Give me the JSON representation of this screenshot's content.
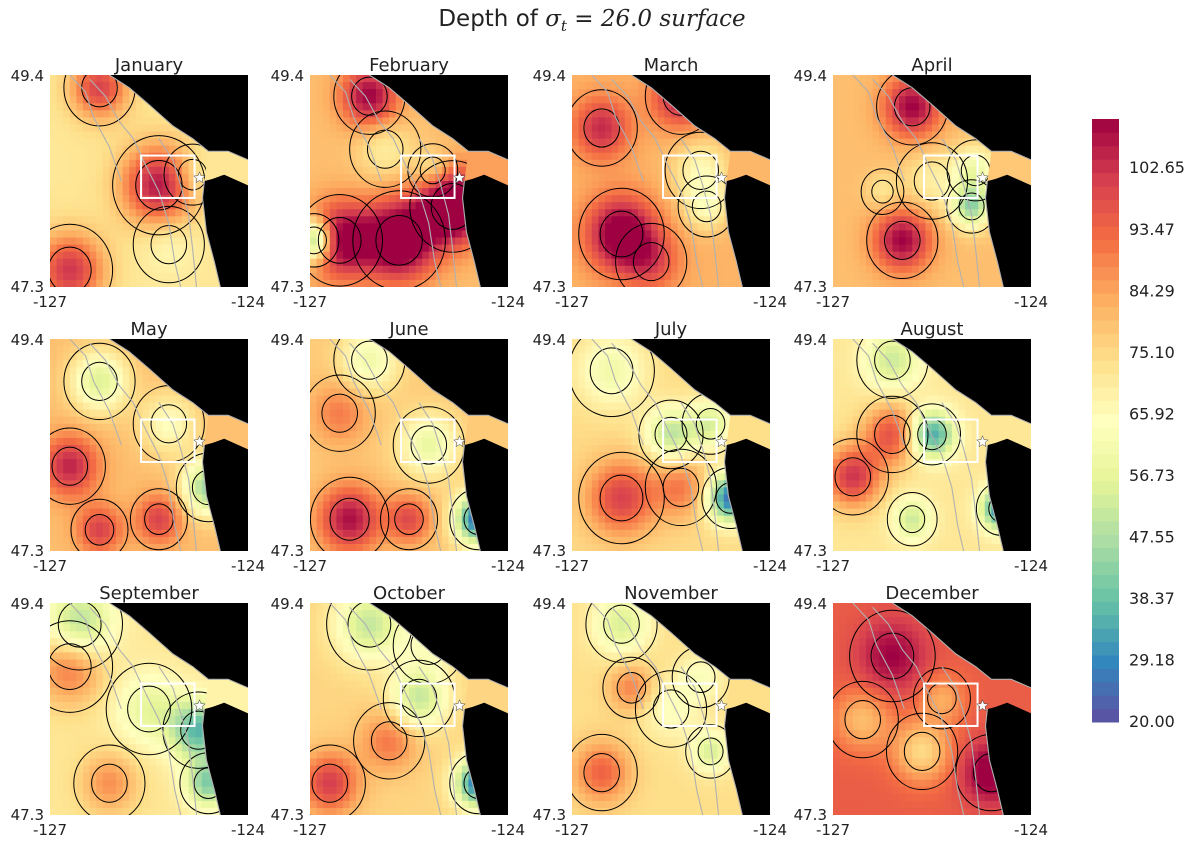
{
  "figure": {
    "title_prefix": "Depth of ",
    "title_symbol": "σ",
    "title_subscript": "t",
    "title_suffix": " = 26.0 surface"
  },
  "axes": {
    "lon_min": "-127",
    "lon_max": "-124",
    "lat_min": "47.3",
    "lat_max": "49.4"
  },
  "colorbar": {
    "ticks": [
      "20.00",
      "29.18",
      "38.37",
      "47.55",
      "56.73",
      "65.92",
      "75.10",
      "84.29",
      "93.47",
      "102.65"
    ],
    "min": 20,
    "max": 110,
    "colormap": "Spectral_r",
    "stops": [
      "#5e4fa2",
      "#3288bd",
      "#66c2a5",
      "#abdda4",
      "#e6f598",
      "#ffffbf",
      "#fee08b",
      "#fdae61",
      "#f46d43",
      "#d53e4f",
      "#9e0142"
    ]
  },
  "colors": {
    "land": "#000000",
    "coast_outline": "#b0b0b0",
    "contour": "#000000",
    "box": "#ffffff",
    "station_star": "#ffffff"
  },
  "chart_data": {
    "type": "heatmap",
    "variable": "Depth of σt = 26.0 surface",
    "x_range": [
      -127,
      -124
    ],
    "y_range": [
      47.3,
      49.4
    ],
    "value_range": [
      20,
      110
    ],
    "panels": [
      {
        "month": "January",
        "base": 72,
        "blobs": [
          [
            0.55,
            0.52,
            35,
            0.13
          ],
          [
            0.1,
            0.92,
            30,
            0.12
          ],
          [
            0.25,
            0.06,
            28,
            0.1
          ],
          [
            0.72,
            0.47,
            -8,
            0.08
          ],
          [
            0.6,
            0.8,
            -6,
            0.1
          ]
        ]
      },
      {
        "month": "February",
        "base": 80,
        "blobs": [
          [
            0.15,
            0.78,
            35,
            0.12
          ],
          [
            0.45,
            0.78,
            40,
            0.13
          ],
          [
            0.72,
            0.62,
            45,
            0.12
          ],
          [
            0.02,
            0.78,
            -45,
            0.07
          ],
          [
            0.38,
            0.35,
            -10,
            0.1
          ],
          [
            0.62,
            0.45,
            -12,
            0.07
          ],
          [
            0.3,
            0.1,
            30,
            0.1
          ]
        ]
      },
      {
        "month": "March",
        "base": 82,
        "blobs": [
          [
            0.25,
            0.75,
            35,
            0.12
          ],
          [
            0.65,
            0.45,
            -15,
            0.1
          ],
          [
            0.68,
            0.62,
            -15,
            0.08
          ],
          [
            0.15,
            0.25,
            22,
            0.1
          ],
          [
            0.4,
            0.88,
            15,
            0.1
          ],
          [
            0.55,
            0.1,
            25,
            0.1
          ]
        ]
      },
      {
        "month": "April",
        "base": 80,
        "blobs": [
          [
            0.35,
            0.78,
            30,
            0.1
          ],
          [
            0.7,
            0.62,
            -35,
            0.07
          ],
          [
            0.72,
            0.45,
            -20,
            0.08
          ],
          [
            0.5,
            0.5,
            -10,
            0.1
          ],
          [
            0.4,
            0.15,
            30,
            0.1
          ],
          [
            0.25,
            0.55,
            -8,
            0.06
          ]
        ]
      },
      {
        "month": "May",
        "base": 80,
        "blobs": [
          [
            0.25,
            0.2,
            -25,
            0.1
          ],
          [
            0.1,
            0.6,
            25,
            0.1
          ],
          [
            0.25,
            0.9,
            20,
            0.08
          ],
          [
            0.55,
            0.85,
            20,
            0.08
          ],
          [
            0.8,
            0.7,
            -35,
            0.09
          ],
          [
            0.6,
            0.4,
            -15,
            0.1
          ]
        ]
      },
      {
        "month": "June",
        "base": 78,
        "blobs": [
          [
            0.2,
            0.85,
            30,
            0.11
          ],
          [
            0.5,
            0.85,
            20,
            0.08
          ],
          [
            0.85,
            0.85,
            -55,
            0.08
          ],
          [
            0.6,
            0.5,
            -20,
            0.1
          ],
          [
            0.15,
            0.35,
            12,
            0.1
          ],
          [
            0.3,
            0.1,
            -18,
            0.1
          ]
        ]
      },
      {
        "month": "July",
        "base": 75,
        "blobs": [
          [
            0.25,
            0.75,
            25,
            0.12
          ],
          [
            0.55,
            0.7,
            15,
            0.1
          ],
          [
            0.8,
            0.75,
            -50,
            0.08
          ],
          [
            0.5,
            0.45,
            -25,
            0.09
          ],
          [
            0.7,
            0.4,
            -20,
            0.08
          ],
          [
            0.2,
            0.15,
            -15,
            0.12
          ]
        ]
      },
      {
        "month": "August",
        "base": 72,
        "blobs": [
          [
            0.1,
            0.65,
            30,
            0.1
          ],
          [
            0.3,
            0.45,
            25,
            0.1
          ],
          [
            0.85,
            0.8,
            -45,
            0.07
          ],
          [
            0.5,
            0.45,
            -40,
            0.08
          ],
          [
            0.4,
            0.85,
            -20,
            0.07
          ],
          [
            0.3,
            0.1,
            -20,
            0.1
          ]
        ]
      },
      {
        "month": "September",
        "base": 72,
        "blobs": [
          [
            0.1,
            0.3,
            20,
            0.12
          ],
          [
            0.3,
            0.85,
            15,
            0.1
          ],
          [
            0.75,
            0.6,
            -35,
            0.1
          ],
          [
            0.8,
            0.85,
            -30,
            0.08
          ],
          [
            0.15,
            0.1,
            -25,
            0.12
          ],
          [
            0.5,
            0.5,
            -15,
            0.12
          ]
        ]
      },
      {
        "month": "October",
        "base": 76,
        "blobs": [
          [
            0.1,
            0.85,
            25,
            0.1
          ],
          [
            0.4,
            0.65,
            15,
            0.1
          ],
          [
            0.85,
            0.85,
            -50,
            0.08
          ],
          [
            0.55,
            0.45,
            -25,
            0.1
          ],
          [
            0.3,
            0.1,
            -25,
            0.12
          ],
          [
            0.6,
            0.2,
            -10,
            0.1
          ]
        ]
      },
      {
        "month": "November",
        "base": 74,
        "blobs": [
          [
            0.15,
            0.8,
            20,
            0.1
          ],
          [
            0.3,
            0.4,
            15,
            0.08
          ],
          [
            0.7,
            0.7,
            -20,
            0.07
          ],
          [
            0.5,
            0.5,
            -10,
            0.1
          ],
          [
            0.25,
            0.1,
            -20,
            0.1
          ],
          [
            0.65,
            0.35,
            -10,
            0.08
          ]
        ]
      },
      {
        "month": "December",
        "base": 95,
        "blobs": [
          [
            0.3,
            0.25,
            15,
            0.12
          ],
          [
            0.8,
            0.8,
            20,
            0.1
          ],
          [
            0.45,
            0.7,
            -20,
            0.1
          ],
          [
            0.15,
            0.55,
            -15,
            0.1
          ],
          [
            0.55,
            0.45,
            -12,
            0.08
          ]
        ]
      }
    ]
  }
}
